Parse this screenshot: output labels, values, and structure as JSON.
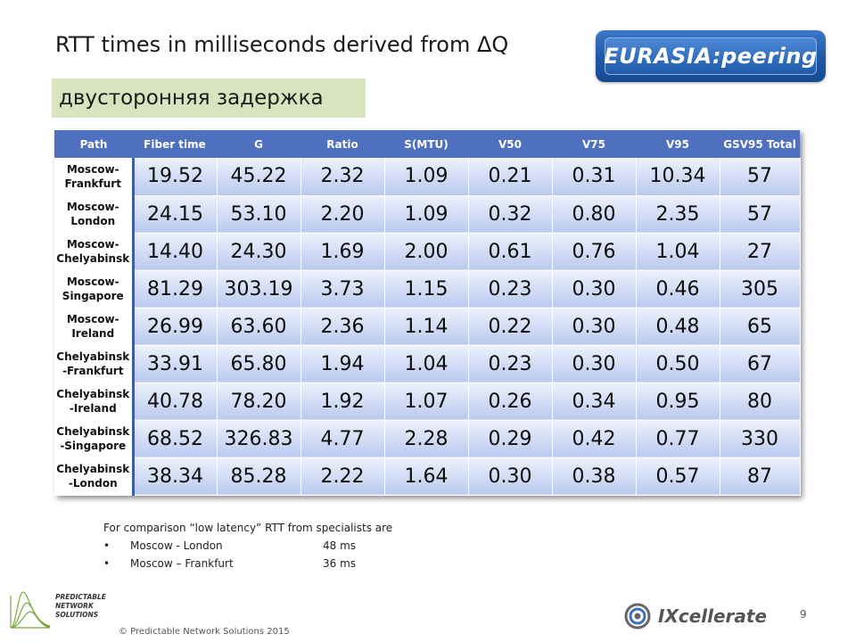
{
  "slide": {
    "title": "RTT times in milliseconds derived from ΔQ",
    "subtitle": "двусторонняя задержка",
    "page_number": "9",
    "copyright": "© Predictable Network Solutions 2015",
    "logos": {
      "eurasia": "EURASIA:peering",
      "pns": [
        "PREDICTABLE",
        "NETWORK",
        "SOLUTIONS"
      ],
      "ixcellerate": "IXcellerate"
    }
  },
  "table": {
    "headers": [
      "Path",
      "Fiber time",
      "G",
      "Ratio",
      "S(MTU)",
      "V50",
      "V75",
      "V95",
      "GSV95 Total"
    ],
    "rows": [
      {
        "path": [
          "Moscow-",
          "Frankfurt"
        ],
        "values": [
          "19.52",
          "45.22",
          "2.32",
          "1.09",
          "0.21",
          "0.31",
          "10.34",
          "57"
        ]
      },
      {
        "path": [
          "Moscow-",
          "London"
        ],
        "values": [
          "24.15",
          "53.10",
          "2.20",
          "1.09",
          "0.32",
          "0.80",
          "2.35",
          "57"
        ]
      },
      {
        "path": [
          "Moscow-",
          "Chelyabinsk"
        ],
        "values": [
          "14.40",
          "24.30",
          "1.69",
          "2.00",
          "0.61",
          "0.76",
          "1.04",
          "27"
        ]
      },
      {
        "path": [
          "Moscow-",
          "Singapore"
        ],
        "values": [
          "81.29",
          "303.19",
          "3.73",
          "1.15",
          "0.23",
          "0.30",
          "0.46",
          "305"
        ]
      },
      {
        "path": [
          "Moscow-",
          "Ireland"
        ],
        "values": [
          "26.99",
          "63.60",
          "2.36",
          "1.14",
          "0.22",
          "0.30",
          "0.48",
          "65"
        ]
      },
      {
        "path": [
          "Chelyabinsk",
          "-Frankfurt"
        ],
        "values": [
          "33.91",
          "65.80",
          "1.94",
          "1.04",
          "0.23",
          "0.30",
          "0.50",
          "67"
        ]
      },
      {
        "path": [
          "Chelyabinsk",
          "-Ireland"
        ],
        "values": [
          "40.78",
          "78.20",
          "1.92",
          "1.07",
          "0.26",
          "0.34",
          "0.95",
          "80"
        ]
      },
      {
        "path": [
          "Chelyabinsk",
          "-Singapore"
        ],
        "values": [
          "68.52",
          "326.83",
          "4.77",
          "2.28",
          "0.29",
          "0.42",
          "0.77",
          "330"
        ]
      },
      {
        "path": [
          "Chelyabinsk",
          "-London"
        ],
        "values": [
          "38.34",
          "85.28",
          "2.22",
          "1.64",
          "0.30",
          "0.38",
          "0.57",
          "87"
        ]
      }
    ]
  },
  "notes": {
    "intro": "For comparison “low latency” RTT from specialists are",
    "bullets": [
      {
        "route": "Moscow - London",
        "rtt": "48 ms"
      },
      {
        "route": "Moscow – Frankfurt",
        "rtt": "36 ms"
      }
    ]
  },
  "colors": {
    "header_bg": "#4f6fbf",
    "subtitle_bg": "#d7e4bd",
    "cell_gradient_top": "#edf1fb",
    "cell_gradient_bottom": "#b9c9ef"
  }
}
